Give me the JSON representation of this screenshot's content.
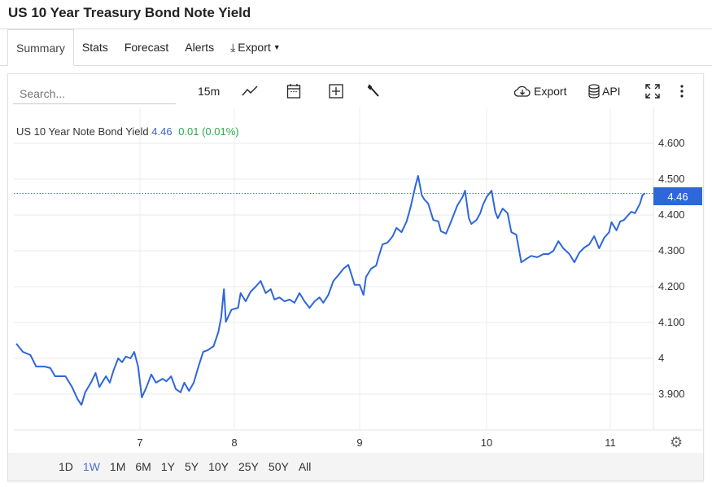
{
  "title": "US 10 Year Treasury Bond Note Yield",
  "tabs": [
    {
      "label": "Summary",
      "active": true
    },
    {
      "label": "Stats"
    },
    {
      "label": "Forecast"
    },
    {
      "label": "Alerts"
    },
    {
      "label": "Export"
    }
  ],
  "toolbar": {
    "search_placeholder": "Search...",
    "interval": "15m",
    "export": "Export",
    "api": "API"
  },
  "legend": {
    "name": "US 10 Year Note Bond Yield",
    "value": "4.46",
    "change": "0.01 (0.01%)"
  },
  "current_price": "4.46",
  "ranges": [
    {
      "label": "1D"
    },
    {
      "label": "1W",
      "active": true
    },
    {
      "label": "1M"
    },
    {
      "label": "6M"
    },
    {
      "label": "1Y"
    },
    {
      "label": "5Y"
    },
    {
      "label": "10Y"
    },
    {
      "label": "25Y"
    },
    {
      "label": "50Y"
    },
    {
      "label": "All"
    }
  ],
  "colors": {
    "line": "#2f66d9",
    "price_box": "#2f66d9",
    "change": "#2ea84a",
    "active_range": "#4a6fd0"
  },
  "chart_data": {
    "type": "line",
    "title": "US 10 Year Note Bond Yield",
    "xlabel": "",
    "ylabel": "",
    "x_ticks": [
      "7",
      "8",
      "9",
      "10",
      "11"
    ],
    "y_ticks": [
      "4.600",
      "4.500",
      "4.400",
      "4.300",
      "4.200",
      "4.100",
      "4",
      "3.900"
    ],
    "ylim": [
      3.8,
      4.62
    ],
    "grid": true,
    "series": [
      {
        "name": "US 10 Year Note Bond Yield",
        "points": [
          [
            5.69,
            4.041
          ],
          [
            5.76,
            4.018
          ],
          [
            5.84,
            4.009
          ],
          [
            5.9,
            3.977
          ],
          [
            5.99,
            3.977
          ],
          [
            6.05,
            3.973
          ],
          [
            6.1,
            3.95
          ],
          [
            6.21,
            3.95
          ],
          [
            6.28,
            3.92
          ],
          [
            6.34,
            3.886
          ],
          [
            6.38,
            3.87
          ],
          [
            6.42,
            3.905
          ],
          [
            6.48,
            3.932
          ],
          [
            6.53,
            3.959
          ],
          [
            6.57,
            3.92
          ],
          [
            6.64,
            3.95
          ],
          [
            6.68,
            3.932
          ],
          [
            6.72,
            3.966
          ],
          [
            6.77,
            4.0
          ],
          [
            6.81,
            3.989
          ],
          [
            6.85,
            4.005
          ],
          [
            6.9,
            4.0
          ],
          [
            6.94,
            4.018
          ],
          [
            6.98,
            3.977
          ],
          [
            7.02,
            3.891
          ],
          [
            7.07,
            3.92
          ],
          [
            7.12,
            3.955
          ],
          [
            7.17,
            3.932
          ],
          [
            7.24,
            3.943
          ],
          [
            7.28,
            3.936
          ],
          [
            7.33,
            3.95
          ],
          [
            7.38,
            3.914
          ],
          [
            7.43,
            3.905
          ],
          [
            7.47,
            3.932
          ],
          [
            7.52,
            3.909
          ],
          [
            7.57,
            3.932
          ],
          [
            7.62,
            3.977
          ],
          [
            7.67,
            4.018
          ],
          [
            7.72,
            4.023
          ],
          [
            7.78,
            4.034
          ],
          [
            7.83,
            4.073
          ],
          [
            7.86,
            4.114
          ],
          [
            7.89,
            4.193
          ],
          [
            7.91,
            4.102
          ],
          [
            7.97,
            4.136
          ],
          [
            8.03,
            4.141
          ],
          [
            8.05,
            4.182
          ],
          [
            8.09,
            4.159
          ],
          [
            8.13,
            4.186
          ],
          [
            8.17,
            4.2
          ],
          [
            8.21,
            4.216
          ],
          [
            8.25,
            4.182
          ],
          [
            8.29,
            4.193
          ],
          [
            8.32,
            4.164
          ],
          [
            8.36,
            4.17
          ],
          [
            8.4,
            4.159
          ],
          [
            8.44,
            4.164
          ],
          [
            8.48,
            4.155
          ],
          [
            8.52,
            4.182
          ],
          [
            8.56,
            4.159
          ],
          [
            8.6,
            4.141
          ],
          [
            8.64,
            4.159
          ],
          [
            8.68,
            4.17
          ],
          [
            8.71,
            4.155
          ],
          [
            8.75,
            4.177
          ],
          [
            8.79,
            4.216
          ],
          [
            8.83,
            4.232
          ],
          [
            8.87,
            4.25
          ],
          [
            8.91,
            4.261
          ],
          [
            8.94,
            4.227
          ],
          [
            8.96,
            4.205
          ],
          [
            9.0,
            4.205
          ],
          [
            9.03,
            4.177
          ],
          [
            9.05,
            4.227
          ],
          [
            9.09,
            4.25
          ],
          [
            9.13,
            4.259
          ],
          [
            9.15,
            4.284
          ],
          [
            9.18,
            4.318
          ],
          [
            9.22,
            4.323
          ],
          [
            9.26,
            4.341
          ],
          [
            9.29,
            4.364
          ],
          [
            9.33,
            4.352
          ],
          [
            9.37,
            4.382
          ],
          [
            9.4,
            4.42
          ],
          [
            9.44,
            4.482
          ],
          [
            9.46,
            4.509
          ],
          [
            9.49,
            4.455
          ],
          [
            9.51,
            4.443
          ],
          [
            9.54,
            4.432
          ],
          [
            9.58,
            4.386
          ],
          [
            9.62,
            4.382
          ],
          [
            9.64,
            4.355
          ],
          [
            9.68,
            4.348
          ],
          [
            9.71,
            4.373
          ],
          [
            9.73,
            4.391
          ],
          [
            9.77,
            4.427
          ],
          [
            9.81,
            4.45
          ],
          [
            9.83,
            4.468
          ],
          [
            9.86,
            4.391
          ],
          [
            9.88,
            4.375
          ],
          [
            9.92,
            4.386
          ],
          [
            9.95,
            4.405
          ],
          [
            9.97,
            4.427
          ],
          [
            10.0,
            4.45
          ],
          [
            10.04,
            4.468
          ],
          [
            10.07,
            4.409
          ],
          [
            10.09,
            4.391
          ],
          [
            10.13,
            4.418
          ],
          [
            10.17,
            4.405
          ],
          [
            10.2,
            4.352
          ],
          [
            10.24,
            4.345
          ],
          [
            10.28,
            4.268
          ],
          [
            10.32,
            4.277
          ],
          [
            10.36,
            4.286
          ],
          [
            10.41,
            4.282
          ],
          [
            10.46,
            4.291
          ],
          [
            10.5,
            4.291
          ],
          [
            10.54,
            4.3
          ],
          [
            10.58,
            4.327
          ],
          [
            10.62,
            4.307
          ],
          [
            10.67,
            4.291
          ],
          [
            10.71,
            4.268
          ],
          [
            10.75,
            4.295
          ],
          [
            10.79,
            4.309
          ],
          [
            10.83,
            4.318
          ],
          [
            10.87,
            4.341
          ],
          [
            10.91,
            4.307
          ],
          [
            10.95,
            4.336
          ],
          [
            10.99,
            4.352
          ],
          [
            11.01,
            4.38
          ],
          [
            11.05,
            4.357
          ],
          [
            11.08,
            4.382
          ],
          [
            11.11,
            4.386
          ],
          [
            11.14,
            4.398
          ],
          [
            11.17,
            4.409
          ],
          [
            11.2,
            4.405
          ],
          [
            11.24,
            4.432
          ],
          [
            11.26,
            4.455
          ],
          [
            11.28,
            4.461
          ]
        ]
      }
    ],
    "current_value": 4.46
  }
}
